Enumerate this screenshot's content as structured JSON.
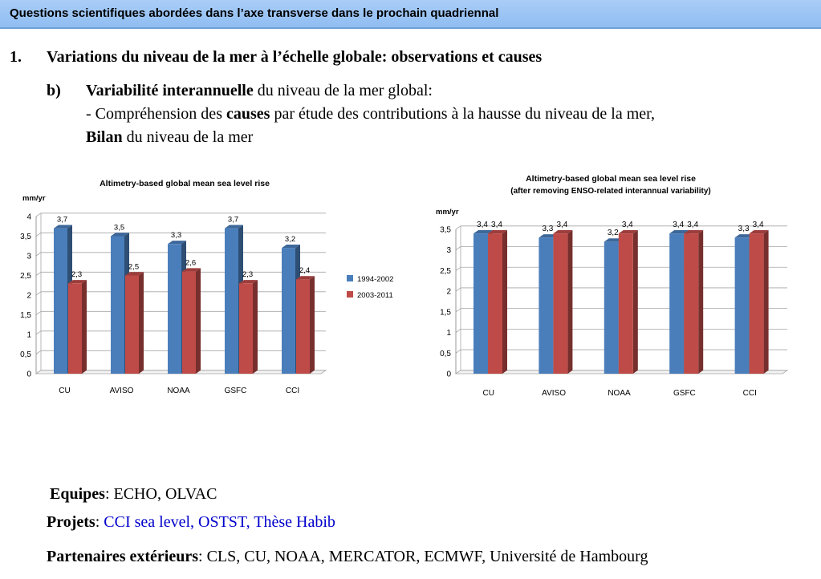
{
  "header": {
    "title": "Questions scientifiques abordées dans l’axe transverse dans le prochain quadriennal"
  },
  "section": {
    "number": "1.",
    "title": "Variations du niveau de la mer à l’échelle globale: observations et causes"
  },
  "subsection": {
    "letter": "b)",
    "line1_bold": "Variabilité interannuelle",
    "line1_rest": " du niveau de la mer global:",
    "line2_pre": "- Compréhension des ",
    "line2_bold": "causes",
    "line2_rest": " par étude des contributions à la hausse du niveau de la mer,",
    "line3_bold": "Bilan",
    "line3_rest": " du niveau de la mer"
  },
  "footer": {
    "equipes_label": "Equipes",
    "equipes_sep": ":  ",
    "equipes_value": "ECHO, OLVAC",
    "projets_label": "Projets",
    "projets_sep": ": ",
    "projets_value": "CCI sea level, OSTST, Thèse Habib",
    "partenaires_label": "Partenaires extérieurs",
    "partenaires_sep": ": ",
    "partenaires_value": "CLS, CU, NOAA, MERCATOR, ECMWF, Université de Hambourg"
  },
  "colors": {
    "series1": "#4a7ebb",
    "series2": "#be4b48",
    "header_bg": "#9fc6f5"
  },
  "chart_data": [
    {
      "type": "bar",
      "title": "Altimetry-based global mean sea level rise",
      "subtitle": "",
      "ylabel": "mm/yr",
      "xlabel": "",
      "categories": [
        "CU",
        "AVISO",
        "NOAA",
        "GSFC",
        "CCI"
      ],
      "ylim": [
        0,
        4
      ],
      "yticks": [
        0,
        0.5,
        1,
        1.5,
        2,
        2.5,
        3,
        3.5,
        4
      ],
      "ytick_labels": [
        "0",
        "0,5",
        "1",
        "1,5",
        "2",
        "2,5",
        "3",
        "3,5",
        "4"
      ],
      "grid": true,
      "legend": "right",
      "series": [
        {
          "name": "1994-2002",
          "values": [
            3.7,
            3.5,
            3.3,
            3.7,
            3.2
          ],
          "labels": [
            "3,7",
            "3,5",
            "3,3",
            "3,7",
            "3,2"
          ]
        },
        {
          "name": "2003-2011",
          "values": [
            2.3,
            2.5,
            2.6,
            2.3,
            2.4
          ],
          "labels": [
            "2,3",
            "2,5",
            "2,6",
            "2,3",
            "2,4"
          ]
        }
      ]
    },
    {
      "type": "bar",
      "title": "Altimetry-based global mean sea level rise",
      "subtitle": "(after removing ENSO-related interannual variability)",
      "ylabel": "mm/yr",
      "xlabel": "",
      "categories": [
        "CU",
        "AVISO",
        "NOAA",
        "GSFC",
        "CCI"
      ],
      "ylim": [
        0,
        3.5
      ],
      "yticks": [
        0,
        0.5,
        1,
        1.5,
        2,
        2.5,
        3,
        3.5
      ],
      "ytick_labels": [
        "0",
        "0,5",
        "1",
        "1,5",
        "2",
        "2,5",
        "3",
        "3,5"
      ],
      "grid": true,
      "legend": "none",
      "series": [
        {
          "name": "",
          "values": [
            3.4,
            3.3,
            3.2,
            3.4,
            3.3
          ],
          "labels": [
            "3,4",
            "3,3",
            "3,2",
            "3,4",
            "3,3"
          ]
        },
        {
          "name": "",
          "values": [
            3.4,
            3.4,
            3.4,
            3.4,
            3.4
          ],
          "labels": [
            "3,4",
            "3,4",
            "3,4",
            "3,4",
            "3,4"
          ]
        }
      ]
    }
  ]
}
